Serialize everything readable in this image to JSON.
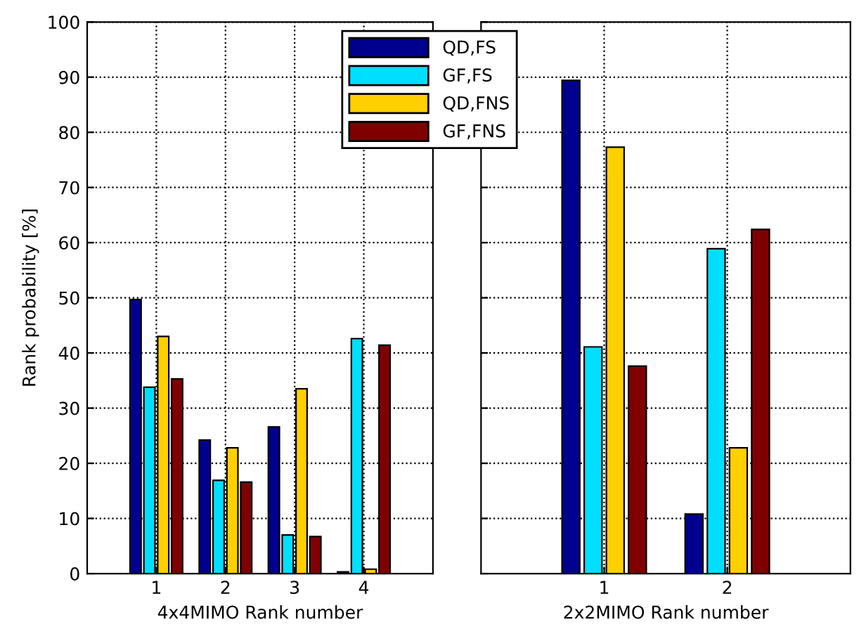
{
  "chart_data": [
    {
      "type": "bar",
      "categories": [
        "1",
        "2",
        "3",
        "4"
      ],
      "xlabel": "4x4MIMO Rank number",
      "ylabel": "Rank probability [%]",
      "ylim": [
        0,
        100
      ],
      "yticks": [
        0,
        10,
        20,
        30,
        40,
        50,
        60,
        70,
        80,
        90,
        100
      ],
      "grid": true,
      "legend": "top",
      "series": [
        {
          "name": "QD,FS",
          "color": "#00008f",
          "values": [
            49.7,
            24.2,
            26.6,
            0.3
          ]
        },
        {
          "name": "GF,FS",
          "color": "#00dfff",
          "values": [
            33.8,
            16.9,
            7.0,
            42.6
          ]
        },
        {
          "name": "QD,FNS",
          "color": "#ffd000",
          "values": [
            43.0,
            22.8,
            33.5,
            0.8
          ]
        },
        {
          "name": "GF,FNS",
          "color": "#800000",
          "values": [
            35.3,
            16.6,
            6.7,
            41.4
          ]
        }
      ]
    },
    {
      "type": "bar",
      "categories": [
        "1",
        "2"
      ],
      "xlabel": "2x2MIMO Rank number",
      "ylim": [
        0,
        100
      ],
      "yticks": [
        0,
        10,
        20,
        30,
        40,
        50,
        60,
        70,
        80,
        90,
        100
      ],
      "grid": true,
      "tick_labels": "x",
      "series": [
        {
          "color": "#00008f",
          "values": [
            89.4,
            10.8
          ]
        },
        {
          "color": "#00dfff",
          "values": [
            41.1,
            58.9
          ]
        },
        {
          "color": "#ffd000",
          "values": [
            77.3,
            22.8
          ]
        },
        {
          "color": "#800000",
          "values": [
            37.6,
            62.4
          ]
        }
      ]
    }
  ]
}
